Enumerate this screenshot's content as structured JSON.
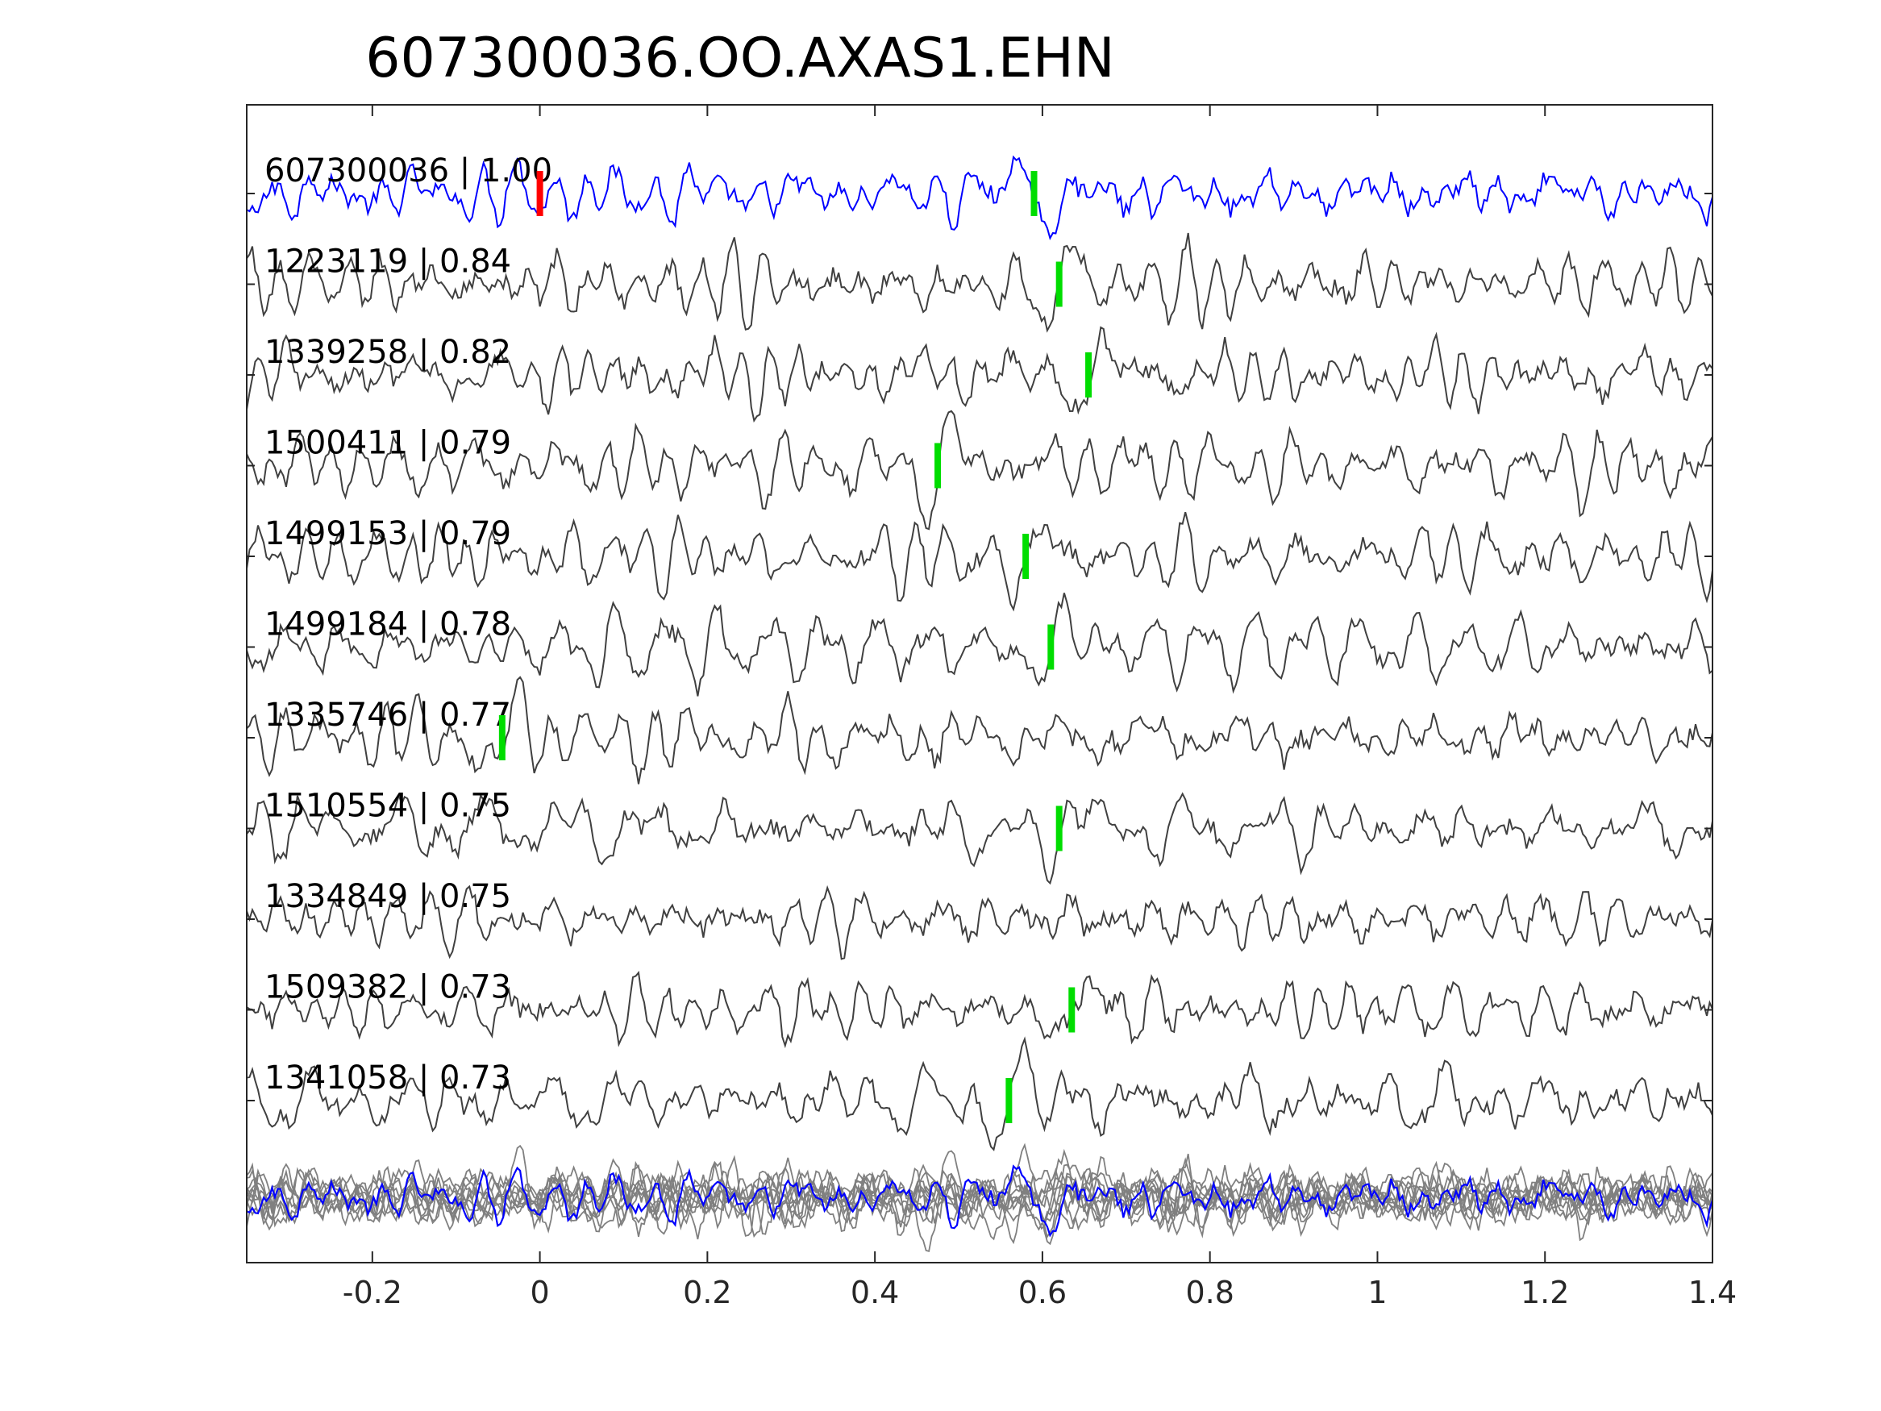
{
  "chart_data": {
    "type": "line",
    "title": "607300036.OO.AXAS1.EHN",
    "xlabel": "",
    "ylabel": "",
    "xlim": [
      -0.35,
      1.4
    ],
    "xticks": [
      -0.2,
      0,
      0.2,
      0.4,
      0.6,
      0.8,
      1,
      1.2,
      1.4
    ],
    "xtick_labels": [
      "-0.2",
      "0",
      "0.2",
      "0.4",
      "0.6",
      "0.8",
      "1",
      "1.2",
      "1.4"
    ],
    "grid": false,
    "legend": "none",
    "reference_pick_time": 0.0,
    "colors": {
      "template": "#0000ff",
      "trace": "#404040",
      "overlay": "#808080",
      "reference_pick": "#ff0000",
      "pick": "#00dd00",
      "axes": "#262626"
    },
    "traces": [
      {
        "id": "607300036",
        "cc": "1.00",
        "label": "607300036 | 1.00",
        "pick": 0.59,
        "template": true
      },
      {
        "id": "1223119",
        "cc": "0.84",
        "label": "1223119 | 0.84",
        "pick": 0.62
      },
      {
        "id": "1339258",
        "cc": "0.82",
        "label": "1339258 | 0.82",
        "pick": 0.655
      },
      {
        "id": "1500411",
        "cc": "0.79",
        "label": "1500411 | 0.79",
        "pick": 0.475
      },
      {
        "id": "1499153",
        "cc": "0.79",
        "label": "1499153 | 0.79",
        "pick": 0.58
      },
      {
        "id": "1499184",
        "cc": "0.78",
        "label": "1499184 | 0.78",
        "pick": 0.61
      },
      {
        "id": "1335746",
        "cc": "0.77",
        "label": "1335746 | 0.77",
        "pick": -0.045
      },
      {
        "id": "1510554",
        "cc": "0.75",
        "label": "1510554 | 0.75",
        "pick": 0.62
      },
      {
        "id": "1334849",
        "cc": "0.75",
        "label": "1334849 | 0.75",
        "pick": null
      },
      {
        "id": "1509382",
        "cc": "0.73",
        "label": "1509382 | 0.73",
        "pick": 0.635
      },
      {
        "id": "1341058",
        "cc": "0.73",
        "label": "1341058 | 0.73",
        "pick": 0.56
      }
    ],
    "stack_overlay": true
  }
}
